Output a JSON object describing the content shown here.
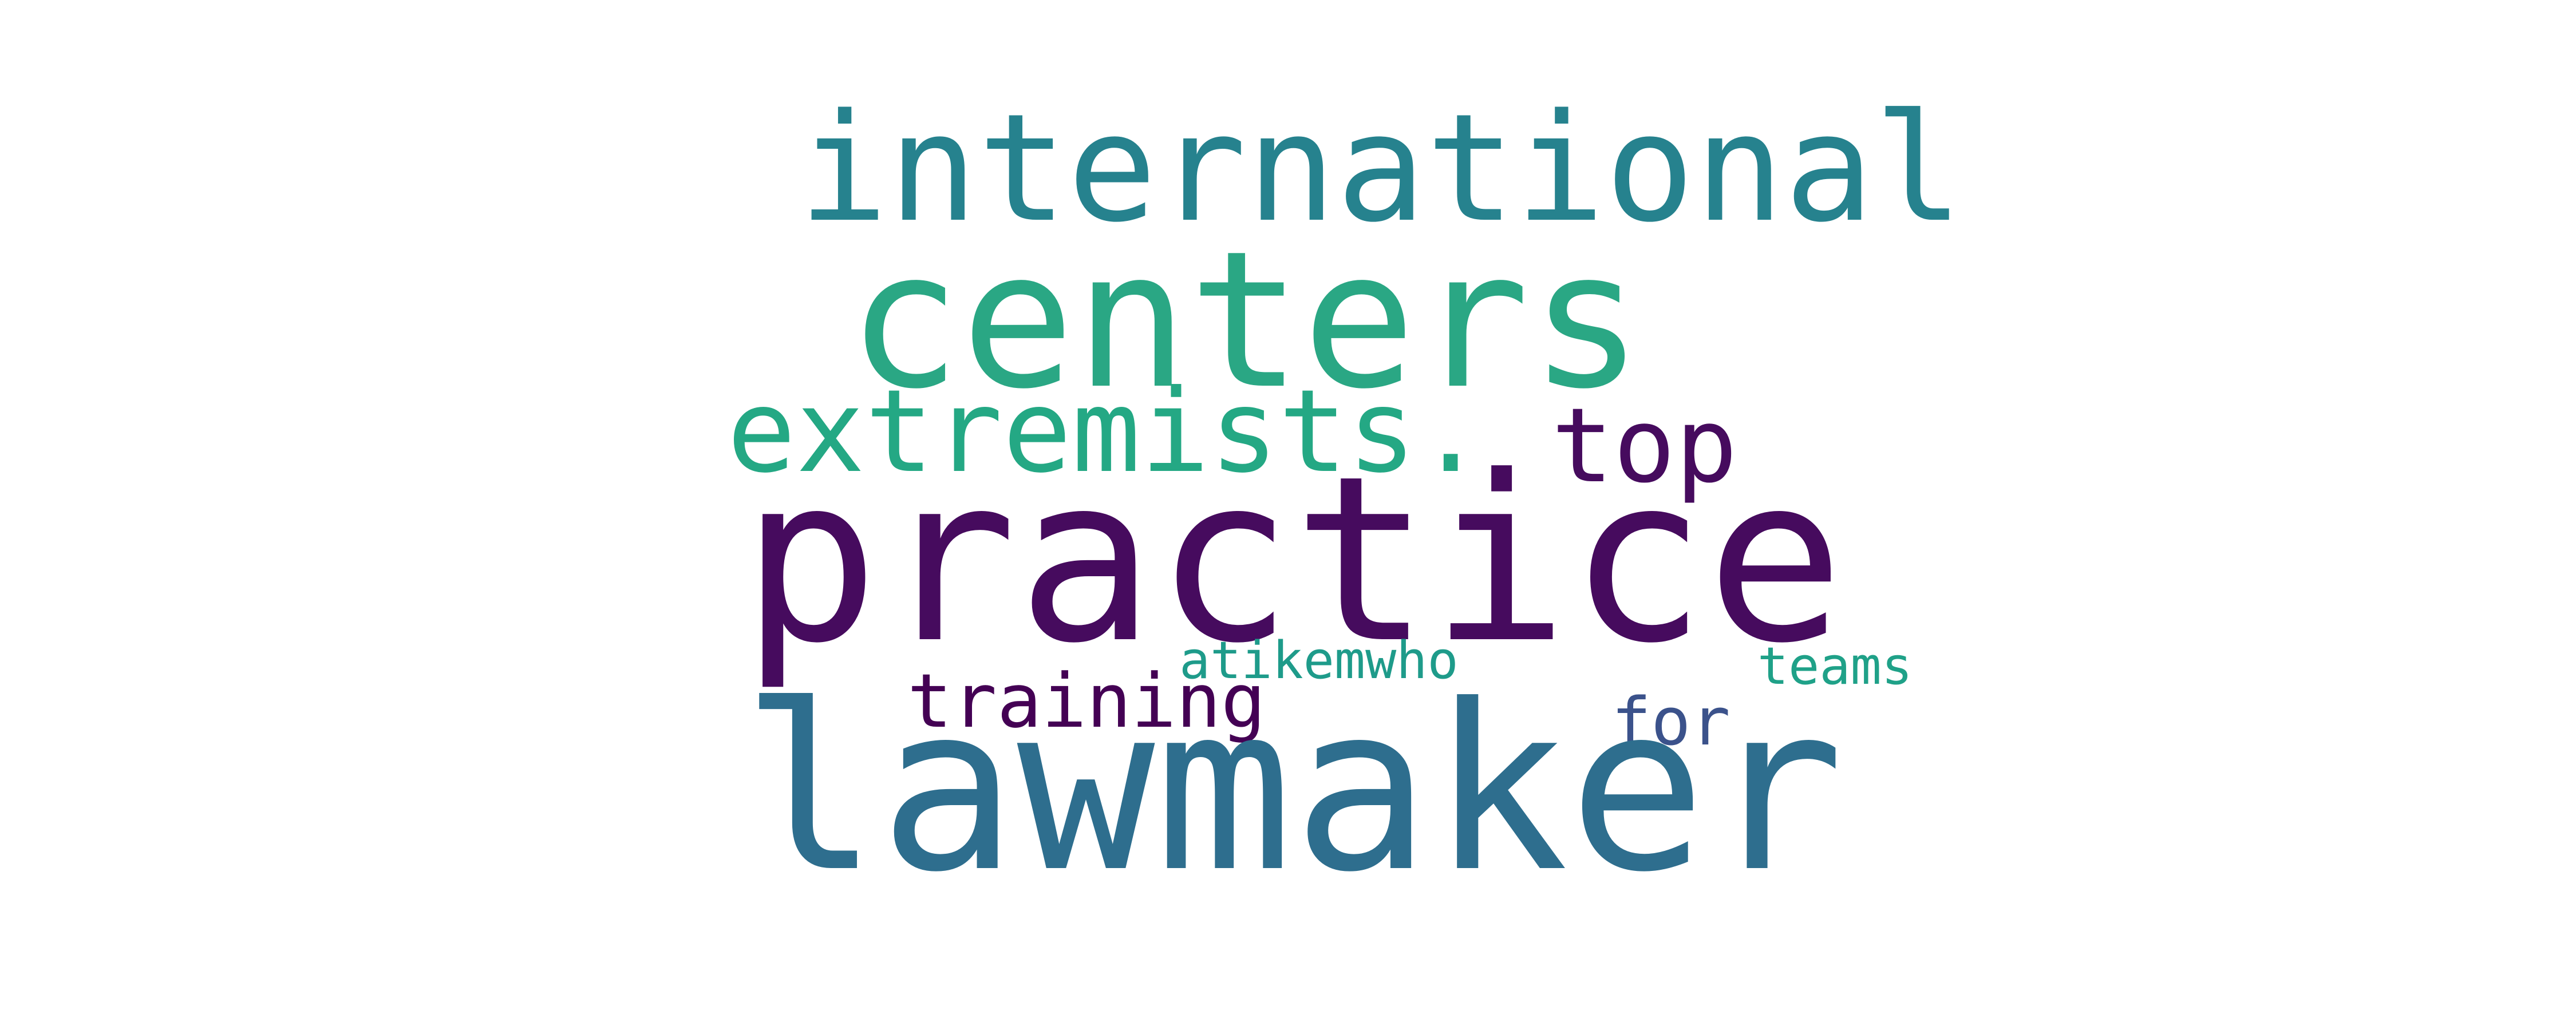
{
  "words": {
    "international": {
      "text": "international",
      "color": "#26828e"
    },
    "centers": {
      "text": "centers",
      "color": "#2aa784"
    },
    "extremists": {
      "text": "extremists.",
      "color": "#24a884"
    },
    "top": {
      "text": "top",
      "color": "#460b5e"
    },
    "practice": {
      "text": "practice",
      "color": "#460b5e"
    },
    "atikemwho": {
      "text": "atikemwho",
      "color": "#1e9b8a"
    },
    "teams": {
      "text": "teams",
      "color": "#1fa188"
    },
    "training": {
      "text": "training",
      "color": "#440154"
    },
    "for": {
      "text": "for",
      "color": "#3b528b"
    },
    "lawmaker": {
      "text": "lawmaker",
      "color": "#2e6e8e"
    }
  }
}
